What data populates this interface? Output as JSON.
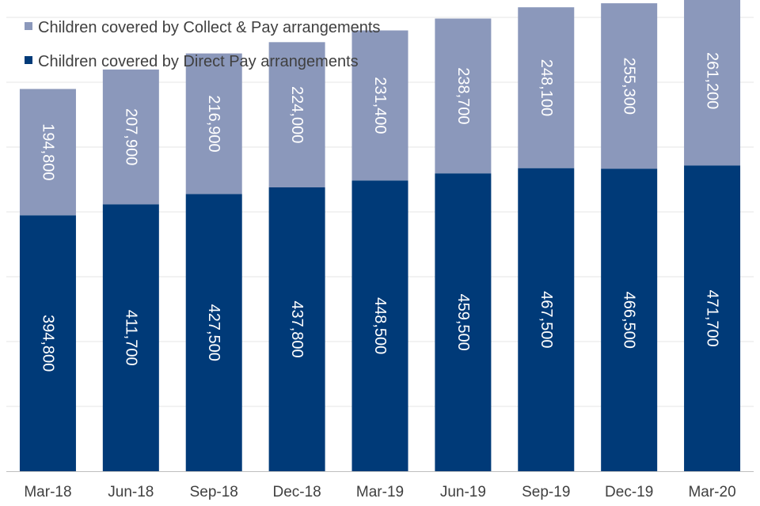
{
  "chart_data": {
    "type": "bar",
    "stacked": true,
    "categories": [
      "Mar-18",
      "Jun-18",
      "Sep-18",
      "Dec-18",
      "Mar-19",
      "Jun-19",
      "Sep-19",
      "Dec-19",
      "Mar-20"
    ],
    "series": [
      {
        "name": "Children covered by Direct Pay arrangements",
        "color": "#003a78",
        "values": [
          394800,
          411700,
          427500,
          437800,
          448500,
          459500,
          467500,
          466500,
          471700
        ],
        "labels": [
          "394,800",
          "411,700",
          "427,500",
          "437,800",
          "448,500",
          "459,500",
          "467,500",
          "466,500",
          "471,700"
        ]
      },
      {
        "name": "Children covered by Collect & Pay arrangements",
        "color": "#8b98bb",
        "values": [
          194800,
          207900,
          216900,
          224000,
          231400,
          238700,
          248100,
          255300,
          261200
        ],
        "labels": [
          "194,800",
          "207,900",
          "216,900",
          "224,000",
          "231,400",
          "238,700",
          "248,100",
          "255,300",
          "261,200"
        ]
      }
    ],
    "title": "",
    "xlabel": "",
    "ylabel": "",
    "ylim": [
      0,
      700000
    ],
    "grid": true,
    "legend": "top-left"
  },
  "legend": {
    "items": [
      {
        "label": "Children covered by Collect & Pay arrangements",
        "color": "#8b98bb"
      },
      {
        "label": "Children covered by Direct Pay arrangements",
        "color": "#003a78"
      }
    ]
  }
}
